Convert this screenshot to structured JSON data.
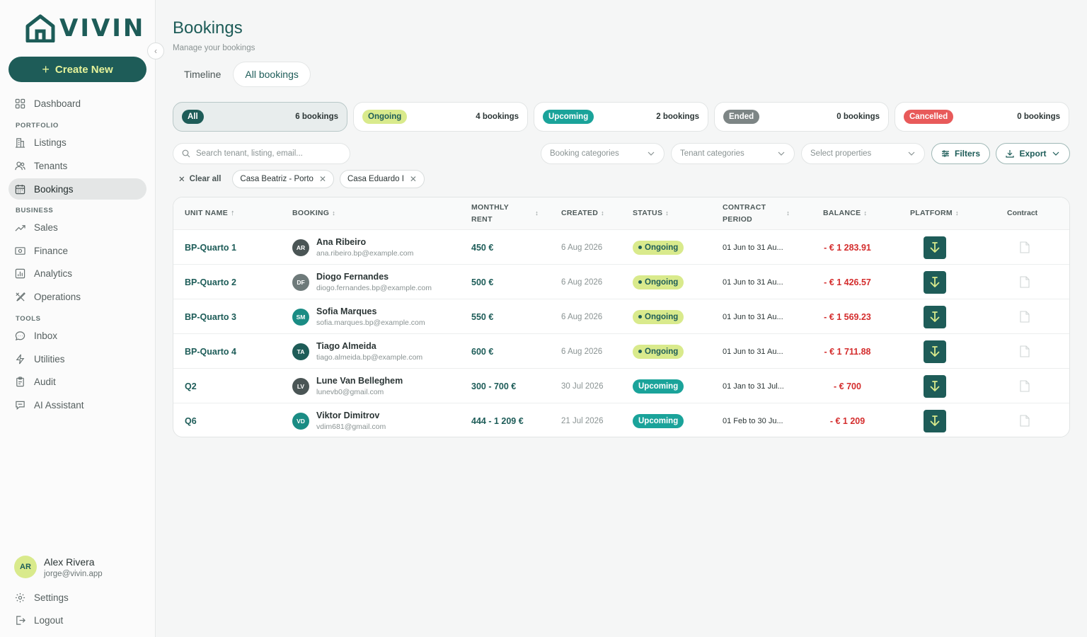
{
  "brand": {
    "name": "VIVIN",
    "color": "#1d5c58",
    "accent": "#e6f39a"
  },
  "sidebar": {
    "create_label": "Create New",
    "items": [
      {
        "label": "Dashboard",
        "icon": "grid-icon"
      },
      {
        "label": "Listings",
        "icon": "building-icon"
      },
      {
        "label": "Tenants",
        "icon": "users-icon"
      },
      {
        "label": "Bookings",
        "icon": "calendar-icon",
        "active": true
      },
      {
        "label": "Sales",
        "icon": "trend-icon"
      },
      {
        "label": "Finance",
        "icon": "banknote-icon"
      },
      {
        "label": "Analytics",
        "icon": "chart-icon"
      },
      {
        "label": "Operations",
        "icon": "tools-icon"
      },
      {
        "label": "Inbox",
        "icon": "message-icon"
      },
      {
        "label": "Utilities",
        "icon": "bolt-icon"
      },
      {
        "label": "Audit",
        "icon": "clipboard-icon"
      },
      {
        "label": "AI Assistant",
        "icon": "chat-icon"
      }
    ],
    "sections": {
      "portfolio": "PORTFOLIO",
      "business": "BUSINESS",
      "tools": "TOOLS"
    },
    "user": {
      "initials": "AR",
      "name": "Alex Rivera",
      "email": "jorge@vivin.app"
    },
    "settings_label": "Settings",
    "logout_label": "Logout"
  },
  "header": {
    "title": "Bookings",
    "subtitle": "Manage your bookings"
  },
  "tabs": [
    {
      "label": "Timeline"
    },
    {
      "label": "All bookings",
      "active": true
    }
  ],
  "status_cards": [
    {
      "label": "All",
      "count": "6 bookings",
      "bg": "#1e5c58",
      "fg": "#ffffff",
      "active": true
    },
    {
      "label": "Ongoing",
      "count": "4 bookings",
      "bg": "#d9ea8c",
      "fg": "#1d5c58"
    },
    {
      "label": "Upcoming",
      "count": "2 bookings",
      "bg": "#1aa39a",
      "fg": "#ffffff"
    },
    {
      "label": "Ended",
      "count": "0 bookings",
      "bg": "#7d8585",
      "fg": "#ffffff"
    },
    {
      "label": "Cancelled",
      "count": "0 bookings",
      "bg": "#e85a5a",
      "fg": "#ffffff"
    }
  ],
  "filters": {
    "search_placeholder": "Search tenant, listing, email...",
    "booking_categories": "Booking categories",
    "tenant_categories": "Tenant categories",
    "select_properties": "Select properties",
    "filters_label": "Filters",
    "export_label": "Export",
    "clear_all": "Clear all",
    "chips": [
      "Casa Beatriz - Porto",
      "Casa Eduardo I"
    ]
  },
  "table": {
    "headers": {
      "unit": "UNIT NAME",
      "booking": "BOOKING",
      "rent_1": "MONTHLY",
      "rent_2": "RENT",
      "created": "CREATED",
      "status": "STATUS",
      "period_1": "CONTRACT",
      "period_2": "PERIOD",
      "balance": "BALANCE",
      "platform": "PLATFORM",
      "contract": "Contract"
    },
    "rows": [
      {
        "unit": "BP-Quarto 1",
        "initials": "AR",
        "avatar_color": "#4a5555",
        "name": "Ana Ribeiro",
        "email": "ana.ribeiro.bp@example.com",
        "rent": "450 €",
        "created": "6 Aug 2026",
        "status": "Ongoing",
        "period": "01 Jun to 31 Au...",
        "balance": "- € 1 283.91"
      },
      {
        "unit": "BP-Quarto 2",
        "initials": "DF",
        "avatar_color": "#6e7a7a",
        "name": "Diogo Fernandes",
        "email": "diogo.fernandes.bp@example.com",
        "rent": "500 €",
        "created": "6 Aug 2026",
        "status": "Ongoing",
        "period": "01 Jun to 31 Au...",
        "balance": "- € 1 426.57"
      },
      {
        "unit": "BP-Quarto 3",
        "initials": "SM",
        "avatar_color": "#1a8c84",
        "name": "Sofia Marques",
        "email": "sofia.marques.bp@example.com",
        "rent": "550 €",
        "created": "6 Aug 2026",
        "status": "Ongoing",
        "period": "01 Jun to 31 Au...",
        "balance": "- € 1 569.23"
      },
      {
        "unit": "BP-Quarto 4",
        "initials": "TA",
        "avatar_color": "#1e5c58",
        "name": "Tiago Almeida",
        "email": "tiago.almeida.bp@example.com",
        "rent": "600 €",
        "created": "6 Aug 2026",
        "status": "Ongoing",
        "period": "01 Jun to 31 Au...",
        "balance": "- € 1 711.88"
      },
      {
        "unit": "Q2",
        "initials": "LV",
        "avatar_color": "#4a5555",
        "name": "Lune Van Belleghem",
        "email": "lunevb0@gmail.com",
        "rent": "300 - 700 €",
        "created": "30 Jul 2026",
        "status": "Upcoming",
        "period": "01 Jan to 31 Jul...",
        "balance": "- € 700"
      },
      {
        "unit": "Q6",
        "initials": "VD",
        "avatar_color": "#1a8c84",
        "name": "Viktor Dimitrov",
        "email": "vdim681@gmail.com",
        "rent": "444 - 1 209 €",
        "created": "21 Jul 2026",
        "status": "Upcoming",
        "period": "01 Feb to 30 Ju...",
        "balance": "- € 1 209"
      }
    ]
  }
}
